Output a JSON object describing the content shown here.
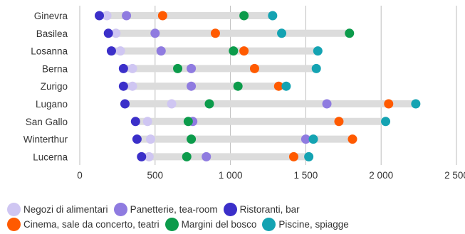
{
  "chart_data": {
    "type": "dot-range",
    "title": "",
    "xlabel": "",
    "ylabel": "",
    "xlim": [
      0,
      2500
    ],
    "x_ticks": [
      0,
      500,
      1000,
      1500,
      2000,
      2500
    ],
    "x_tick_labels": [
      "0",
      "500",
      "1 000",
      "1 500",
      "2 000",
      "2 500"
    ],
    "grid": "vertical",
    "legend_position": "bottom",
    "categories": [
      "Ginevra",
      "Basilea",
      "Losanna",
      "Berna",
      "Zurigo",
      "Lugano",
      "San Gallo",
      "Winterthur",
      "Lucerna"
    ],
    "series": [
      {
        "name": "Negozi di alimentari",
        "color": "#cfc6f2",
        "values": [
          180,
          240,
          270,
          350,
          350,
          610,
          450,
          470,
          460
        ]
      },
      {
        "name": "Panetterie, tea-room",
        "color": "#8f7be0",
        "values": [
          310,
          500,
          540,
          740,
          740,
          1640,
          750,
          1500,
          840
        ]
      },
      {
        "name": "Ristoranti, bar",
        "color": "#3b2fc9",
        "values": [
          130,
          190,
          210,
          290,
          290,
          300,
          370,
          380,
          410
        ]
      },
      {
        "name": "Cinema, sale da concerto, teatri",
        "color": "#ff5a00",
        "values": [
          550,
          900,
          1090,
          1160,
          1320,
          2050,
          1720,
          1810,
          1420
        ]
      },
      {
        "name": "Margini del bosco",
        "color": "#0c9b4b",
        "values": [
          1090,
          1790,
          1020,
          650,
          1050,
          860,
          720,
          740,
          710
        ]
      },
      {
        "name": "Piscine, spiagge",
        "color": "#14a3b2",
        "values": [
          1280,
          1340,
          1580,
          1570,
          1370,
          2230,
          2030,
          1550,
          1520
        ]
      }
    ]
  }
}
